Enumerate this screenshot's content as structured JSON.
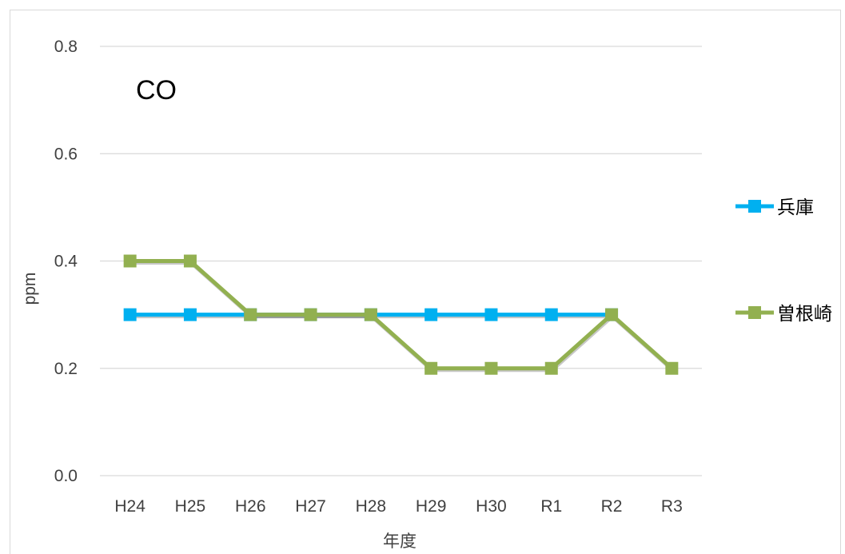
{
  "chart_data": {
    "type": "line",
    "title": "CO",
    "xlabel": "年度",
    "ylabel": "ppm",
    "categories": [
      "H24",
      "H25",
      "H26",
      "H27",
      "H28",
      "H29",
      "H30",
      "R1",
      "R2",
      "R3"
    ],
    "ylim": [
      0,
      0.8
    ],
    "yticks": [
      "0.0",
      "0.2",
      "0.4",
      "0.6",
      "0.8"
    ],
    "grid": true,
    "legend": "right",
    "series": [
      {
        "name": "兵庫",
        "color": "#00b0f0",
        "values": [
          0.3,
          0.3,
          0.3,
          0.3,
          0.3,
          0.3,
          0.3,
          0.3,
          0.3,
          null
        ]
      },
      {
        "name": "曽根崎",
        "color": "#92b050",
        "values": [
          0.4,
          0.4,
          0.3,
          0.3,
          0.3,
          0.2,
          0.2,
          0.2,
          0.3,
          0.2
        ]
      }
    ]
  }
}
